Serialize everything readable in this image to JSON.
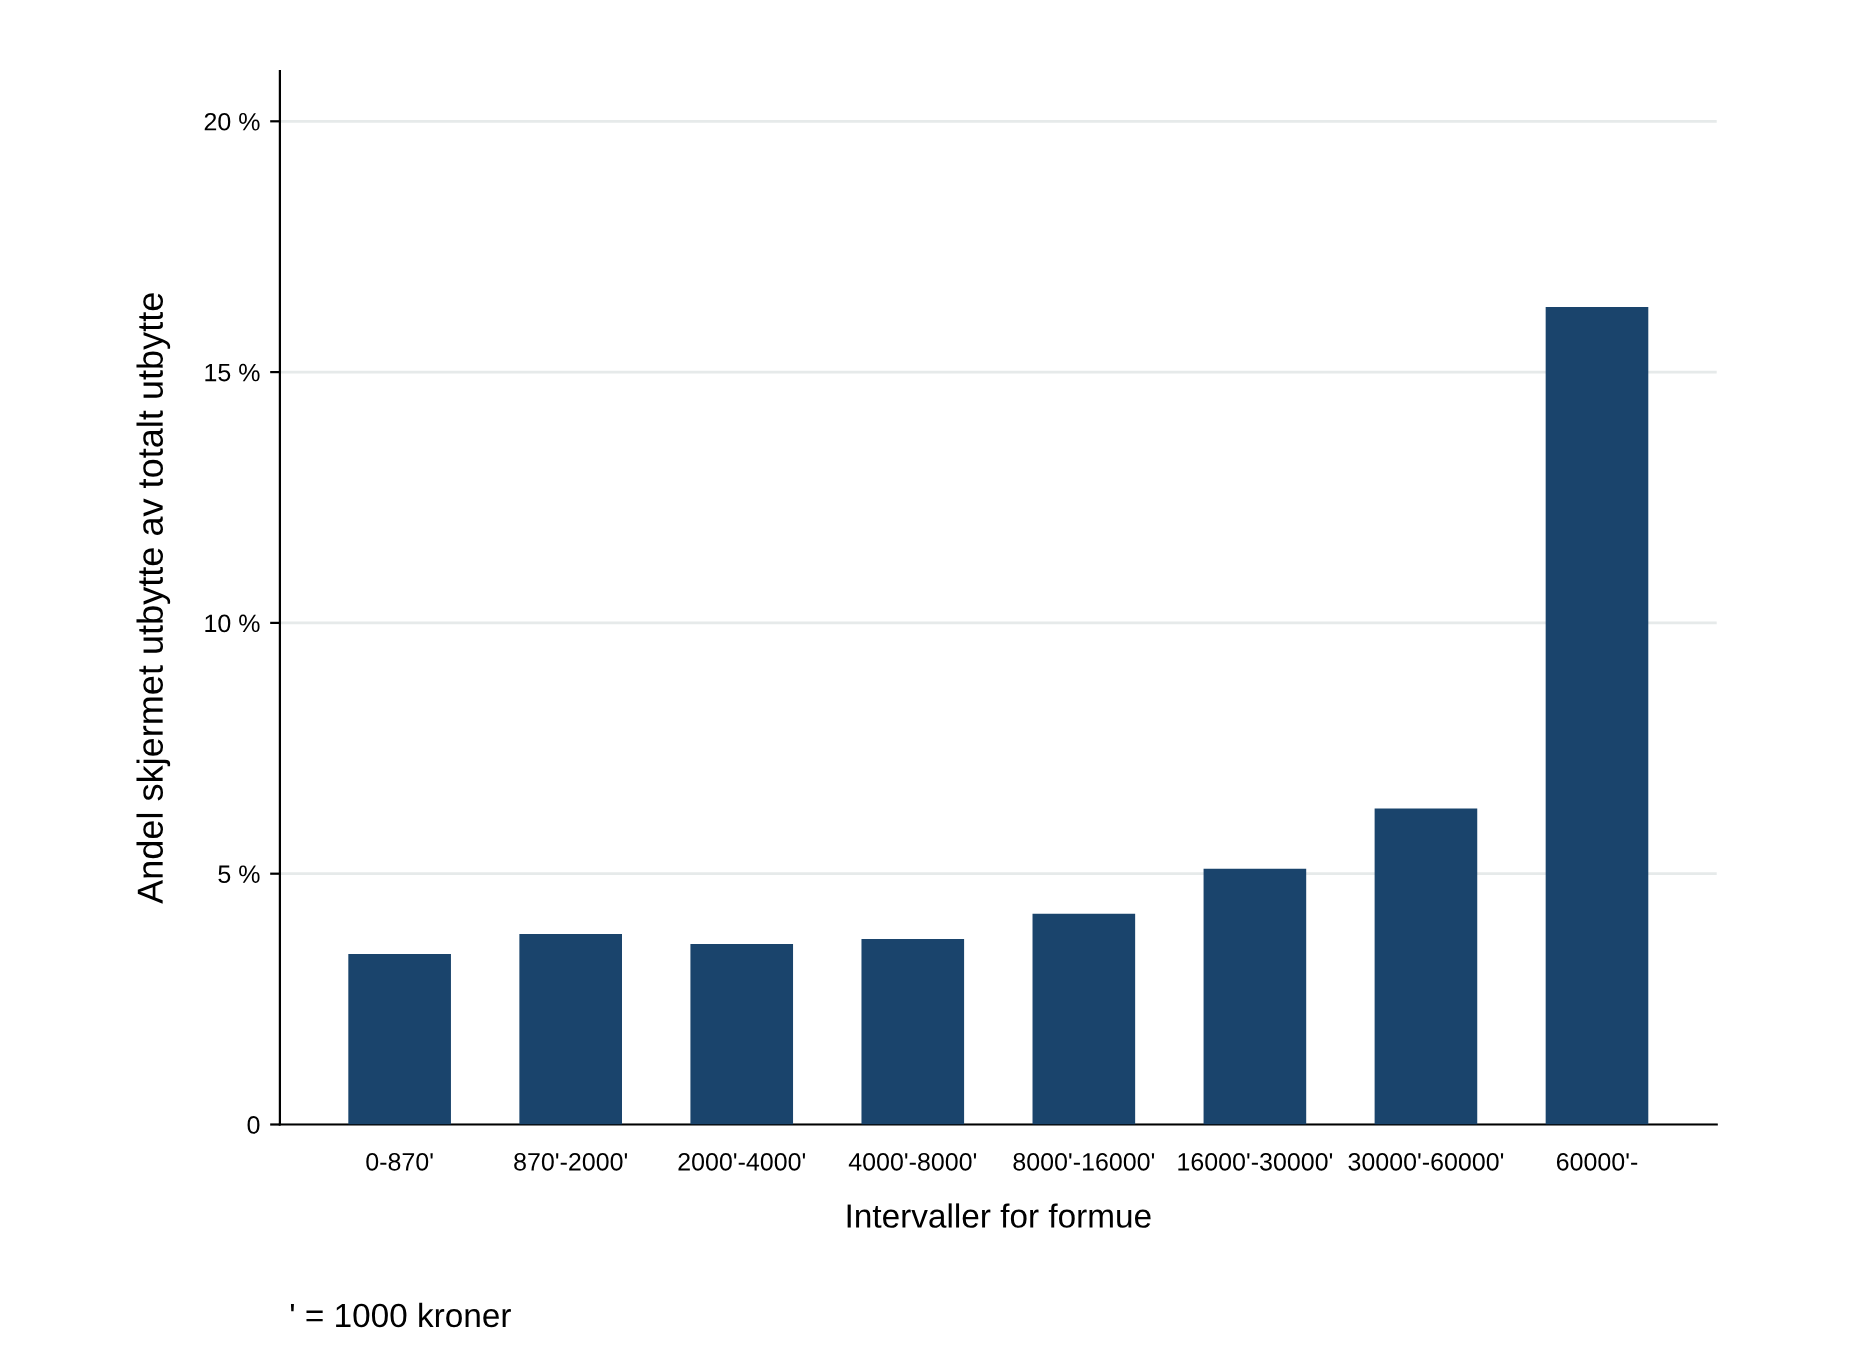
{
  "chart_data": {
    "type": "bar",
    "xlabel": "Intervaller for formue",
    "ylabel": "Andel skjermet utbytte av totalt utbytte",
    "categories": [
      "0-870'",
      "870'-2000'",
      "2000'-4000'",
      "4000'-8000'",
      "8000'-16000'",
      "16000'-30000'",
      "30000'-60000'",
      "60000'-"
    ],
    "values": [
      3.4,
      3.8,
      3.6,
      3.7,
      4.2,
      5.1,
      6.3,
      16.3
    ],
    "color": "#1a446c",
    "ylim": [
      0,
      21
    ],
    "yticks": [
      0,
      {
        "value": 5,
        "label": "5 %"
      },
      {
        "value": 10,
        "label": "10 %"
      },
      {
        "value": 15,
        "label": "15 %"
      },
      {
        "value": 20,
        "label": "20 %"
      }
    ],
    "grid": "y",
    "annotations": [
      "' = 1000 kroner"
    ]
  }
}
